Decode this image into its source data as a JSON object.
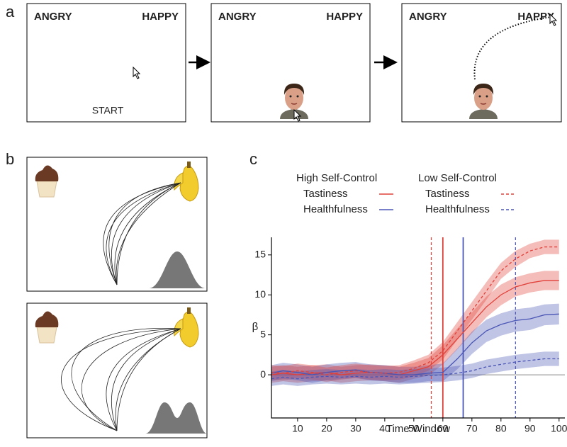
{
  "panel_a": {
    "label": "a",
    "screens": [
      {
        "left": "ANGRY",
        "right": "HAPPY",
        "center": "START"
      },
      {
        "left": "ANGRY",
        "right": "HAPPY"
      },
      {
        "left": "ANGRY",
        "right": "HAPPY"
      }
    ]
  },
  "panel_b": {
    "label": "b"
  },
  "panel_c": {
    "label": "c"
  },
  "chart_data": {
    "type": "line",
    "xlabel": "Time Window",
    "ylabel": "β",
    "groups": [
      "High Self-Control",
      "Low Self-Control"
    ],
    "x": [
      1,
      5,
      10,
      15,
      20,
      25,
      30,
      35,
      40,
      45,
      50,
      55,
      60,
      65,
      70,
      75,
      80,
      85,
      90,
      95,
      100
    ],
    "series": [
      {
        "name": "Tastiness",
        "group": 0,
        "color": "#e0413a",
        "dashed": false,
        "values": [
          0,
          0.2,
          0,
          0.2,
          0.3,
          0,
          0.2,
          0.3,
          0.2,
          0,
          0.5,
          1,
          2.5,
          4.5,
          6.5,
          8.5,
          10,
          11,
          11.5,
          11.8,
          11.8
        ],
        "errors": [
          1,
          1,
          1,
          1,
          1,
          1,
          1,
          1,
          1,
          1,
          1,
          1.1,
          1.2,
          1.3,
          1.3,
          1.3,
          1.3,
          1.2,
          1.2,
          1.2,
          1.2
        ]
      },
      {
        "name": "Healthfulness",
        "group": 0,
        "color": "#4a56b5",
        "dashed": false,
        "values": [
          0.2,
          0.5,
          0.3,
          0,
          0.3,
          0.5,
          0.6,
          0.3,
          0.2,
          0,
          0,
          0.2,
          0.3,
          2,
          4,
          5.5,
          6.3,
          6.8,
          7,
          7.5,
          7.6
        ],
        "errors": [
          1,
          1,
          1,
          1,
          1,
          1,
          1,
          1,
          1,
          1,
          1,
          1,
          1.1,
          1.3,
          1.4,
          1.4,
          1.4,
          1.4,
          1.4,
          1.3,
          1.3
        ]
      },
      {
        "name": "Tastiness",
        "group": 1,
        "color": "#e0413a",
        "dashed": true,
        "values": [
          0.3,
          0.2,
          0.5,
          0.3,
          0,
          0.3,
          0.5,
          0.3,
          0.2,
          0.3,
          0.8,
          1.5,
          3,
          5.5,
          8,
          10.5,
          13,
          14.5,
          15.5,
          16,
          16
        ],
        "errors": [
          0.9,
          0.9,
          0.9,
          0.9,
          0.9,
          0.9,
          0.9,
          0.9,
          0.9,
          0.9,
          1,
          1,
          1.1,
          1.1,
          1.1,
          1.1,
          1,
          1,
          0.9,
          0.9,
          0.9
        ]
      },
      {
        "name": "Healthfulness",
        "group": 1,
        "color": "#4a56b5",
        "dashed": true,
        "values": [
          -0.5,
          -0.3,
          -0.5,
          -0.3,
          -0.2,
          -0.3,
          -0.2,
          -0.3,
          -0.2,
          -0.3,
          -0.2,
          -0.1,
          0,
          0.2,
          0.5,
          1,
          1.3,
          1.6,
          1.8,
          2,
          2
        ],
        "errors": [
          0.9,
          0.9,
          0.9,
          0.9,
          0.9,
          0.9,
          0.9,
          0.9,
          0.9,
          0.9,
          0.9,
          0.9,
          0.9,
          0.9,
          0.9,
          0.9,
          0.9,
          0.9,
          0.9,
          0.9,
          0.9
        ]
      }
    ],
    "markers": [
      {
        "x": 56,
        "color": "#e0413a",
        "dashed": true
      },
      {
        "x": 60,
        "color": "#e0413a",
        "dashed": false
      },
      {
        "x": 67,
        "color": "#4a56b5",
        "dashed": false
      },
      {
        "x": 85,
        "color": "#4a56b5",
        "dashed": true
      }
    ],
    "hline": 0,
    "xlim": [
      1,
      102
    ],
    "ylim": [
      -5.4,
      17.2
    ],
    "xticks": [
      10,
      20,
      30,
      40,
      50,
      60,
      70,
      80,
      90,
      100
    ],
    "yticks": [
      0,
      5,
      10,
      15
    ]
  }
}
